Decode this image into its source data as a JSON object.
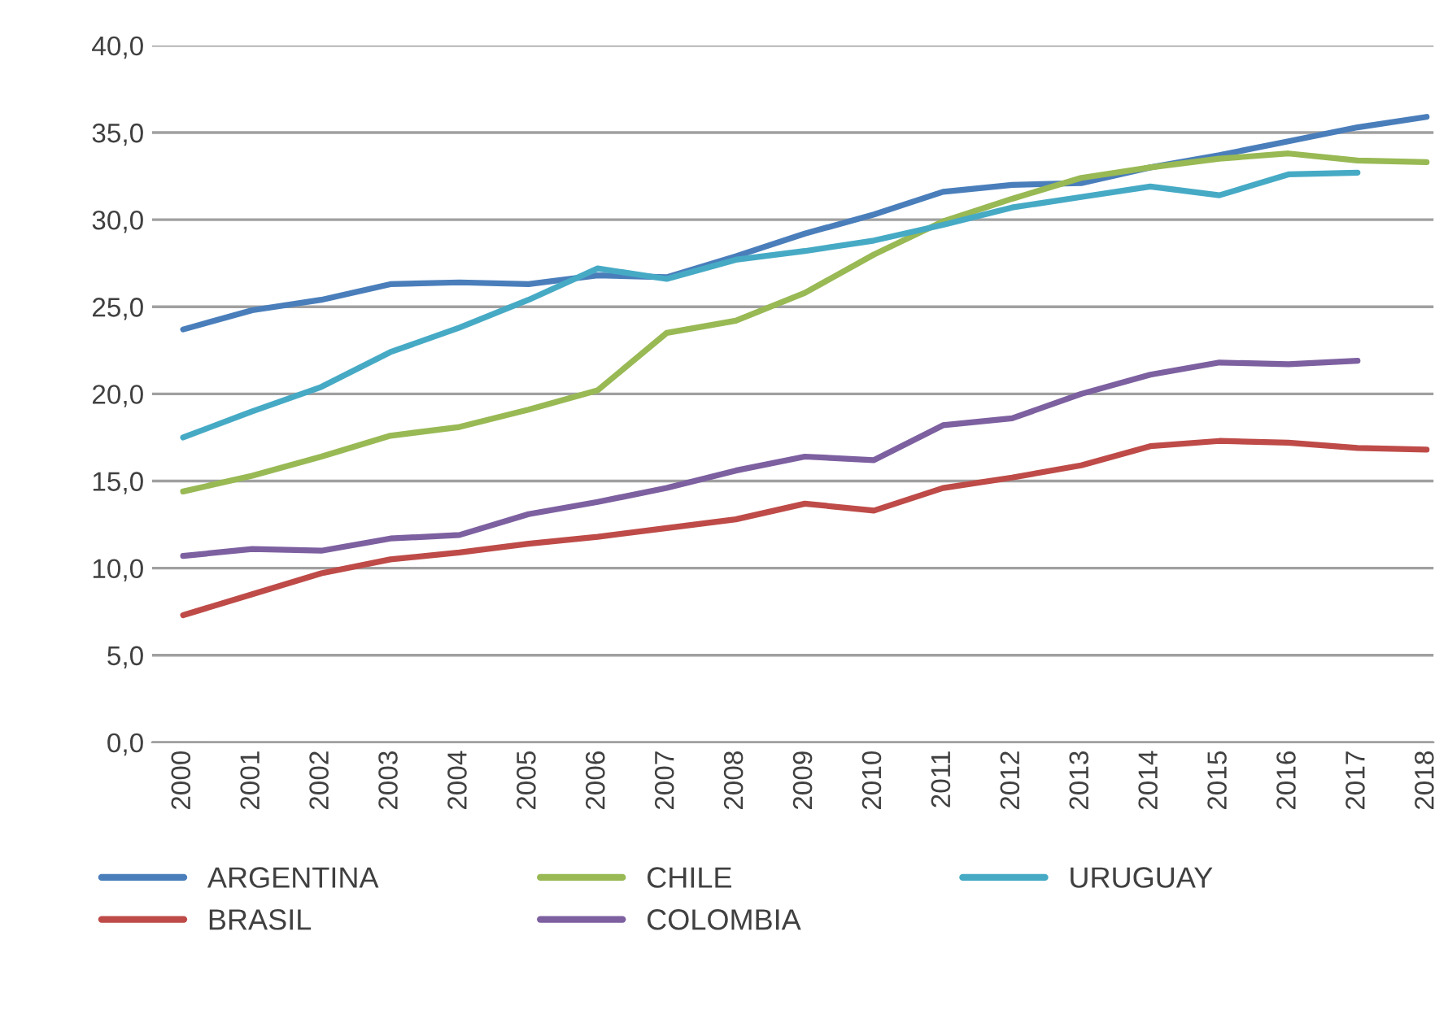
{
  "chart_data": {
    "type": "line",
    "categories": [
      "2000",
      "2001",
      "2002",
      "2003",
      "2004",
      "2005",
      "2006",
      "2007",
      "2008",
      "2009",
      "2010",
      "2011",
      "2012",
      "2013",
      "2014",
      "2015",
      "2016",
      "2017",
      "2018"
    ],
    "series": [
      {
        "name": "ARGENTINA",
        "color": "#4a7ebb",
        "values": [
          23.7,
          24.8,
          25.4,
          26.3,
          26.4,
          26.3,
          26.8,
          26.7,
          27.9,
          29.2,
          30.3,
          31.6,
          32.0,
          32.1,
          33.0,
          33.7,
          34.5,
          35.3,
          35.9
        ]
      },
      {
        "name": "BRASIL",
        "color": "#be4b48",
        "values": [
          7.3,
          8.5,
          9.7,
          10.5,
          10.9,
          11.4,
          11.8,
          12.3,
          12.8,
          13.7,
          13.3,
          14.6,
          15.2,
          15.9,
          17.0,
          17.3,
          17.2,
          16.9,
          16.8
        ]
      },
      {
        "name": "CHILE",
        "color": "#98b954",
        "values": [
          14.4,
          15.3,
          16.4,
          17.6,
          18.1,
          19.1,
          20.2,
          23.5,
          24.2,
          25.8,
          28.0,
          29.9,
          31.2,
          32.4,
          33.0,
          33.5,
          33.8,
          33.4,
          33.3
        ]
      },
      {
        "name": "COLOMBIA",
        "color": "#7d60a0",
        "values": [
          10.7,
          11.1,
          11.0,
          11.7,
          11.9,
          13.1,
          13.8,
          14.6,
          15.6,
          16.4,
          16.2,
          18.2,
          18.6,
          20.0,
          21.1,
          21.8,
          21.7,
          21.9,
          null
        ]
      },
      {
        "name": "URUGUAY",
        "color": "#46aac5",
        "values": [
          17.5,
          19.0,
          20.4,
          22.4,
          23.8,
          25.4,
          27.2,
          26.6,
          27.7,
          28.2,
          28.8,
          29.7,
          30.7,
          31.3,
          31.9,
          31.4,
          32.6,
          32.7,
          null
        ]
      }
    ],
    "ylim": [
      0,
      40
    ],
    "yticks": [
      {
        "value": 0,
        "label": "0,0"
      },
      {
        "value": 5,
        "label": "5,0"
      },
      {
        "value": 10,
        "label": "10,0"
      },
      {
        "value": 15,
        "label": "15,0"
      },
      {
        "value": 20,
        "label": "20,0"
      },
      {
        "value": 25,
        "label": "25,0"
      },
      {
        "value": 30,
        "label": "30,0"
      },
      {
        "value": 35,
        "label": "35,0"
      },
      {
        "value": 40,
        "label": "40,0"
      }
    ],
    "grid": "y",
    "legend": "bottom",
    "line_style": "solid"
  }
}
